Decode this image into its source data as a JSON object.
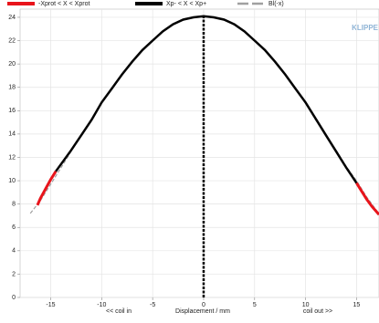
{
  "chart_data": {
    "type": "line",
    "logo": "KLIPPE",
    "annotations": [
      "<< coil in",
      "Displacement / mm",
      "coil out >>"
    ],
    "xlim": [
      -18,
      17.2
    ],
    "ylim": [
      0,
      24.7
    ],
    "xticks": [
      -15,
      -10,
      -5,
      0,
      5,
      10,
      15
    ],
    "yticks": [
      0,
      2,
      4,
      6,
      8,
      10,
      12,
      14,
      16,
      18,
      20,
      22,
      24
    ],
    "grid": true,
    "vline_x": 0,
    "series": [
      {
        "name": "-Xprot < X < Xprot",
        "color": "#e8141b",
        "width": 3,
        "dash": false,
        "x": [
          -16.3,
          -16,
          -15.5,
          -15,
          -14.5,
          0,
          15,
          15.5,
          16,
          16.5,
          17,
          17.2
        ],
        "values": [
          7.9,
          8.5,
          9.3,
          10.1,
          10.8,
          null,
          9.8,
          9.1,
          8.4,
          7.8,
          7.3,
          7.1
        ]
      },
      {
        "name": "Xp- < X < Xp+",
        "color": "#000000",
        "width": 2.5,
        "dash": false,
        "x": [
          -14.5,
          -13,
          -12,
          -11,
          -10,
          -9,
          -8,
          -7,
          -6,
          -5,
          -4,
          -3,
          -2,
          -1,
          0,
          1,
          2,
          3,
          4,
          5,
          6,
          7,
          8,
          9,
          10,
          11,
          12,
          13,
          14,
          15
        ],
        "values": [
          10.8,
          12.6,
          13.9,
          15.2,
          16.7,
          17.9,
          19.1,
          20.2,
          21.2,
          22.0,
          22.8,
          23.4,
          23.8,
          24.0,
          24.1,
          24.0,
          23.8,
          23.4,
          22.8,
          22.0,
          21.2,
          20.2,
          19.1,
          17.9,
          16.7,
          15.3,
          13.9,
          12.5,
          11.1,
          9.8
        ]
      },
      {
        "name": "Bl(-x)",
        "color": "#a0a0a0",
        "width": 1.2,
        "dash": true,
        "x": [
          -17,
          -16,
          -15,
          -14,
          -13,
          -12,
          -11,
          -10,
          -9,
          -8,
          -7,
          -6,
          -5,
          -4,
          -3,
          -2,
          -1,
          0,
          1,
          2,
          3,
          4,
          5,
          6,
          7,
          8,
          9,
          10,
          11,
          12,
          13,
          14,
          15,
          16,
          17
        ],
        "values": [
          7.2,
          8.3,
          9.7,
          11.1,
          12.5,
          13.9,
          15.3,
          16.7,
          17.9,
          19.1,
          20.2,
          21.2,
          22.0,
          22.8,
          23.4,
          23.8,
          24.0,
          24.1,
          24.0,
          23.8,
          23.4,
          22.8,
          22.0,
          21.2,
          20.2,
          19.1,
          17.9,
          16.6,
          15.2,
          13.9,
          12.6,
          11.2,
          10.0,
          8.6,
          7.4
        ]
      }
    ]
  }
}
